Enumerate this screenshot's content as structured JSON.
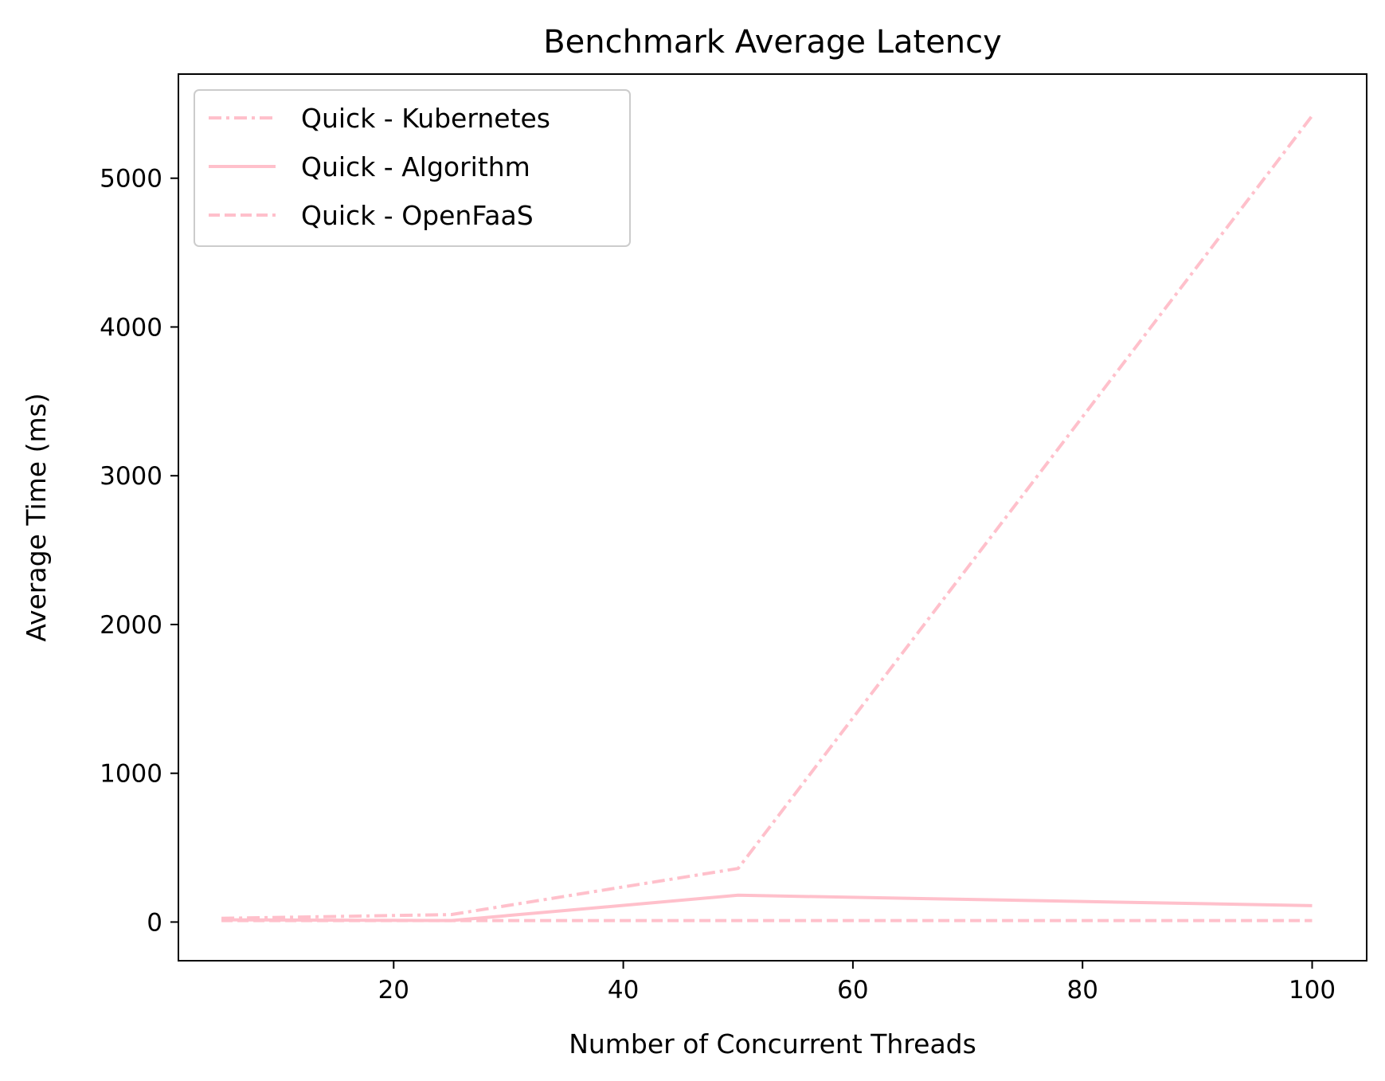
{
  "chart_data": {
    "type": "line",
    "title": "Benchmark Average Latency",
    "xlabel": "Number of Concurrent Threads",
    "ylabel": "Average Time (ms)",
    "xlim": [
      1.25,
      104.75
    ],
    "ylim": [
      -260,
      5700
    ],
    "x_ticks": [
      20,
      40,
      60,
      80,
      100
    ],
    "y_ticks": [
      0,
      1000,
      2000,
      3000,
      4000,
      5000
    ],
    "grid": false,
    "legend_position": "top-left",
    "x": [
      5,
      25,
      50,
      100
    ],
    "series": [
      {
        "name": "Quick - Kubernetes",
        "values": [
          25,
          50,
          360,
          5420
        ],
        "style": "dashdot",
        "color": "#FFC0CB"
      },
      {
        "name": "Quick - Algorithm",
        "values": [
          15,
          10,
          180,
          110
        ],
        "style": "solid",
        "color": "#FFC0CB"
      },
      {
        "name": "Quick - OpenFaaS",
        "values": [
          10,
          10,
          10,
          10
        ],
        "style": "dashed",
        "color": "#FFC0CB"
      }
    ]
  }
}
